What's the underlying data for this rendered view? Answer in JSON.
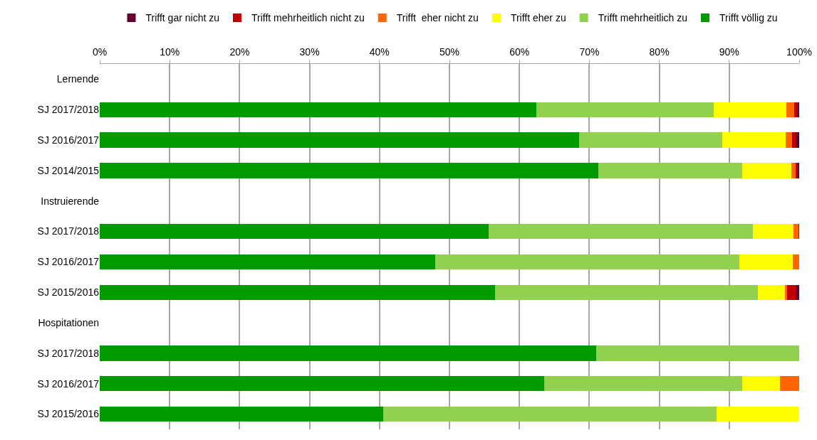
{
  "chart_data": {
    "type": "bar",
    "orientation": "horizontal",
    "stacked": true,
    "categories": [
      "Lernende",
      "SJ 2017/2018",
      "SJ 2016/2017",
      "SJ 2014/2015",
      "Instruierende",
      "SJ 2017/2018",
      "SJ 2016/2017",
      "SJ 2015/2016",
      "Hospitationen",
      "SJ 2017/2018",
      "SJ 2016/2017",
      "SJ 2015/2016"
    ],
    "series": [
      {
        "name": "Trifft völlig zu",
        "color": "#009900",
        "values": [
          null,
          62.4,
          68.5,
          71.3,
          null,
          55.6,
          48.0,
          56.5,
          null,
          71.0,
          63.5,
          40.5
        ]
      },
      {
        "name": "Trifft mehrheitlich zu",
        "color": "#92d050",
        "values": [
          null,
          25.4,
          20.5,
          20.6,
          null,
          37.8,
          43.4,
          37.6,
          null,
          29.0,
          28.4,
          47.7
        ]
      },
      {
        "name": "Trifft eher zu",
        "color": "#ffff00",
        "values": [
          null,
          10.4,
          9.1,
          7.0,
          null,
          5.8,
          7.7,
          3.9,
          null,
          null,
          5.4,
          11.8
        ]
      },
      {
        "name": "Trifft  eher nicht zu",
        "color": "#ff6600",
        "values": [
          null,
          1.1,
          0.9,
          0.6,
          null,
          0.7,
          0.9,
          0.3,
          null,
          null,
          2.7,
          null
        ]
      },
      {
        "name": "Trifft mehrheitlich nicht zu",
        "color": "#c00000",
        "values": [
          null,
          0.5,
          0.6,
          0.3,
          null,
          0.1,
          null,
          1.3,
          null,
          null,
          null,
          null
        ]
      },
      {
        "name": "Trifft gar nicht zu",
        "color": "#660033",
        "values": [
          null,
          0.2,
          0.4,
          0.2,
          null,
          null,
          null,
          0.4,
          null,
          null,
          null,
          null
        ]
      }
    ],
    "xlim": [
      0,
      100
    ],
    "xticks": [
      {
        "value": 0,
        "label": "0%"
      },
      {
        "value": 10,
        "label": "10%"
      },
      {
        "value": 20,
        "label": "20%"
      },
      {
        "value": 30,
        "label": "30%"
      },
      {
        "value": 40,
        "label": "40%"
      },
      {
        "value": 50,
        "label": "50%"
      },
      {
        "value": 60,
        "label": "60%"
      },
      {
        "value": 70,
        "label": "70%"
      },
      {
        "value": 80,
        "label": "80%"
      },
      {
        "value": 90,
        "label": "90%"
      },
      {
        "value": 100,
        "label": "100%"
      }
    ],
    "grid": "x",
    "legend": "top"
  }
}
